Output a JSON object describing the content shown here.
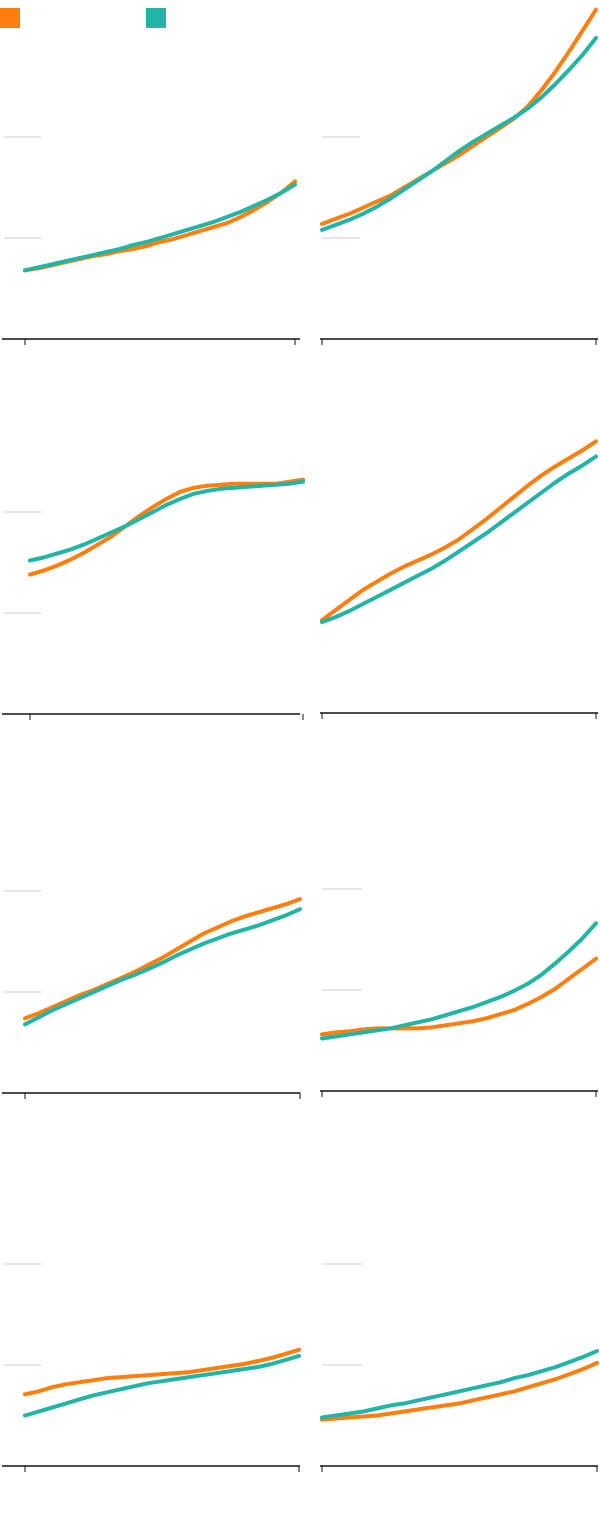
{
  "colors": {
    "orange": "#ff7f0e",
    "teal": "#22b5a5"
  },
  "legend": [
    {
      "color": "#ff7f0e",
      "label": ""
    },
    {
      "color": "#22b5a5",
      "label": ""
    }
  ],
  "chart_data": [
    {
      "type": "line",
      "title": "",
      "grid": true,
      "ylim": [
        0,
        3
      ],
      "x": [
        0,
        0.05,
        0.1,
        0.15,
        0.2,
        0.25,
        0.3,
        0.35,
        0.4,
        0.45,
        0.5,
        0.55,
        0.6,
        0.65,
        0.7,
        0.75,
        0.8,
        0.85,
        0.9,
        0.95,
        1
      ],
      "series": [
        {
          "color": "#ff7f0e",
          "values": [
            0.68,
            0.7,
            0.73,
            0.76,
            0.79,
            0.82,
            0.84,
            0.87,
            0.89,
            0.92,
            0.96,
            0.99,
            1.03,
            1.07,
            1.11,
            1.15,
            1.21,
            1.28,
            1.36,
            1.45,
            1.56
          ]
        },
        {
          "color": "#22b5a5",
          "values": [
            0.68,
            0.71,
            0.74,
            0.77,
            0.8,
            0.83,
            0.86,
            0.89,
            0.93,
            0.96,
            1.0,
            1.04,
            1.08,
            1.12,
            1.16,
            1.21,
            1.26,
            1.32,
            1.38,
            1.45,
            1.53
          ]
        }
      ]
    },
    {
      "type": "line",
      "title": "",
      "grid": true,
      "ylim": [
        0,
        3
      ],
      "x": [
        0,
        0.05,
        0.1,
        0.15,
        0.2,
        0.25,
        0.3,
        0.35,
        0.4,
        0.45,
        0.5,
        0.55,
        0.6,
        0.65,
        0.7,
        0.75,
        0.8,
        0.85,
        0.9,
        0.95,
        1
      ],
      "series": [
        {
          "color": "#ff7f0e",
          "values": [
            1.14,
            1.19,
            1.24,
            1.3,
            1.36,
            1.42,
            1.5,
            1.58,
            1.66,
            1.74,
            1.82,
            1.91,
            2.0,
            2.09,
            2.18,
            2.3,
            2.46,
            2.64,
            2.84,
            3.05,
            3.26
          ]
        },
        {
          "color": "#22b5a5",
          "values": [
            1.08,
            1.13,
            1.18,
            1.24,
            1.31,
            1.39,
            1.48,
            1.57,
            1.66,
            1.76,
            1.86,
            1.95,
            2.03,
            2.11,
            2.19,
            2.28,
            2.39,
            2.52,
            2.66,
            2.81,
            2.98
          ]
        }
      ]
    },
    {
      "type": "line",
      "title": "",
      "grid": true,
      "ylim": [
        0,
        3
      ],
      "x": [
        0,
        0.05,
        0.1,
        0.15,
        0.2,
        0.25,
        0.3,
        0.35,
        0.4,
        0.45,
        0.5,
        0.55,
        0.6,
        0.65,
        0.7,
        0.75,
        0.8,
        0.85,
        0.9,
        0.95,
        1
      ],
      "series": [
        {
          "color": "#ff7f0e",
          "values": [
            1.38,
            1.42,
            1.47,
            1.53,
            1.6,
            1.68,
            1.76,
            1.86,
            1.96,
            2.05,
            2.13,
            2.2,
            2.24,
            2.26,
            2.27,
            2.28,
            2.28,
            2.28,
            2.28,
            2.3,
            2.32
          ]
        },
        {
          "color": "#22b5a5",
          "values": [
            1.52,
            1.55,
            1.59,
            1.63,
            1.68,
            1.74,
            1.8,
            1.86,
            1.93,
            2.0,
            2.07,
            2.13,
            2.18,
            2.21,
            2.23,
            2.24,
            2.25,
            2.26,
            2.27,
            2.28,
            2.3
          ]
        }
      ]
    },
    {
      "type": "line",
      "title": "",
      "grid": false,
      "ylim": [
        0,
        3
      ],
      "x": [
        0,
        0.05,
        0.1,
        0.15,
        0.2,
        0.25,
        0.3,
        0.35,
        0.4,
        0.45,
        0.5,
        0.55,
        0.6,
        0.65,
        0.7,
        0.75,
        0.8,
        0.85,
        0.9,
        0.95,
        1
      ],
      "series": [
        {
          "color": "#ff7f0e",
          "values": [
            0.92,
            1.02,
            1.12,
            1.22,
            1.3,
            1.38,
            1.45,
            1.51,
            1.57,
            1.64,
            1.72,
            1.82,
            1.92,
            2.03,
            2.14,
            2.25,
            2.35,
            2.44,
            2.52,
            2.6,
            2.69
          ]
        },
        {
          "color": "#22b5a5",
          "values": [
            0.9,
            0.95,
            1.01,
            1.08,
            1.15,
            1.22,
            1.29,
            1.36,
            1.43,
            1.51,
            1.6,
            1.69,
            1.78,
            1.88,
            1.98,
            2.08,
            2.18,
            2.28,
            2.37,
            2.45,
            2.54
          ]
        }
      ]
    },
    {
      "type": "line",
      "title": "",
      "grid": true,
      "ylim": [
        0,
        3
      ],
      "x": [
        0,
        0.05,
        0.1,
        0.15,
        0.2,
        0.25,
        0.3,
        0.35,
        0.4,
        0.45,
        0.5,
        0.55,
        0.6,
        0.65,
        0.7,
        0.75,
        0.8,
        0.85,
        0.9,
        0.95,
        1
      ],
      "series": [
        {
          "color": "#ff7f0e",
          "values": [
            0.74,
            0.79,
            0.85,
            0.91,
            0.97,
            1.02,
            1.08,
            1.14,
            1.2,
            1.27,
            1.34,
            1.42,
            1.5,
            1.58,
            1.64,
            1.7,
            1.75,
            1.79,
            1.83,
            1.87,
            1.92
          ]
        },
        {
          "color": "#22b5a5",
          "values": [
            0.68,
            0.75,
            0.82,
            0.88,
            0.94,
            1.0,
            1.06,
            1.12,
            1.17,
            1.23,
            1.29,
            1.36,
            1.42,
            1.48,
            1.53,
            1.58,
            1.62,
            1.66,
            1.71,
            1.76,
            1.82
          ]
        }
      ]
    },
    {
      "type": "line",
      "title": "",
      "grid": true,
      "ylim": [
        0,
        3
      ],
      "x": [
        0,
        0.05,
        0.1,
        0.15,
        0.2,
        0.25,
        0.3,
        0.35,
        0.4,
        0.45,
        0.5,
        0.55,
        0.6,
        0.65,
        0.7,
        0.75,
        0.8,
        0.85,
        0.9,
        0.95,
        1
      ],
      "series": [
        {
          "color": "#ff7f0e",
          "values": [
            0.56,
            0.58,
            0.59,
            0.61,
            0.62,
            0.62,
            0.62,
            0.62,
            0.63,
            0.65,
            0.67,
            0.69,
            0.72,
            0.76,
            0.8,
            0.86,
            0.93,
            1.01,
            1.11,
            1.21,
            1.31
          ]
        },
        {
          "color": "#22b5a5",
          "values": [
            0.52,
            0.54,
            0.56,
            0.58,
            0.6,
            0.62,
            0.65,
            0.68,
            0.71,
            0.75,
            0.79,
            0.83,
            0.88,
            0.93,
            0.99,
            1.06,
            1.15,
            1.26,
            1.38,
            1.51,
            1.66
          ]
        }
      ]
    },
    {
      "type": "line",
      "title": "",
      "grid": true,
      "ylim": [
        0,
        3
      ],
      "x": [
        0,
        0.05,
        0.1,
        0.15,
        0.2,
        0.25,
        0.3,
        0.35,
        0.4,
        0.45,
        0.5,
        0.55,
        0.6,
        0.65,
        0.7,
        0.75,
        0.8,
        0.85,
        0.9,
        0.95,
        1
      ],
      "series": [
        {
          "color": "#ff7f0e",
          "values": [
            0.71,
            0.74,
            0.78,
            0.81,
            0.83,
            0.85,
            0.87,
            0.88,
            0.89,
            0.9,
            0.91,
            0.92,
            0.93,
            0.95,
            0.97,
            0.99,
            1.01,
            1.04,
            1.07,
            1.11,
            1.15
          ]
        },
        {
          "color": "#22b5a5",
          "values": [
            0.5,
            0.54,
            0.58,
            0.62,
            0.66,
            0.7,
            0.73,
            0.76,
            0.79,
            0.82,
            0.84,
            0.86,
            0.88,
            0.9,
            0.92,
            0.94,
            0.96,
            0.98,
            1.01,
            1.05,
            1.09
          ]
        }
      ]
    },
    {
      "type": "line",
      "title": "",
      "grid": true,
      "ylim": [
        0,
        3
      ],
      "x": [
        0,
        0.05,
        0.1,
        0.15,
        0.2,
        0.25,
        0.3,
        0.35,
        0.4,
        0.45,
        0.5,
        0.55,
        0.6,
        0.65,
        0.7,
        0.75,
        0.8,
        0.85,
        0.9,
        0.95,
        1
      ],
      "series": [
        {
          "color": "#ff7f0e",
          "values": [
            0.46,
            0.47,
            0.48,
            0.49,
            0.5,
            0.52,
            0.54,
            0.56,
            0.58,
            0.6,
            0.62,
            0.65,
            0.68,
            0.71,
            0.74,
            0.78,
            0.82,
            0.86,
            0.91,
            0.96,
            1.02
          ]
        },
        {
          "color": "#22b5a5",
          "values": [
            0.48,
            0.5,
            0.52,
            0.54,
            0.57,
            0.6,
            0.62,
            0.65,
            0.68,
            0.71,
            0.74,
            0.77,
            0.8,
            0.83,
            0.87,
            0.9,
            0.94,
            0.98,
            1.03,
            1.08,
            1.14
          ]
        }
      ]
    }
  ]
}
